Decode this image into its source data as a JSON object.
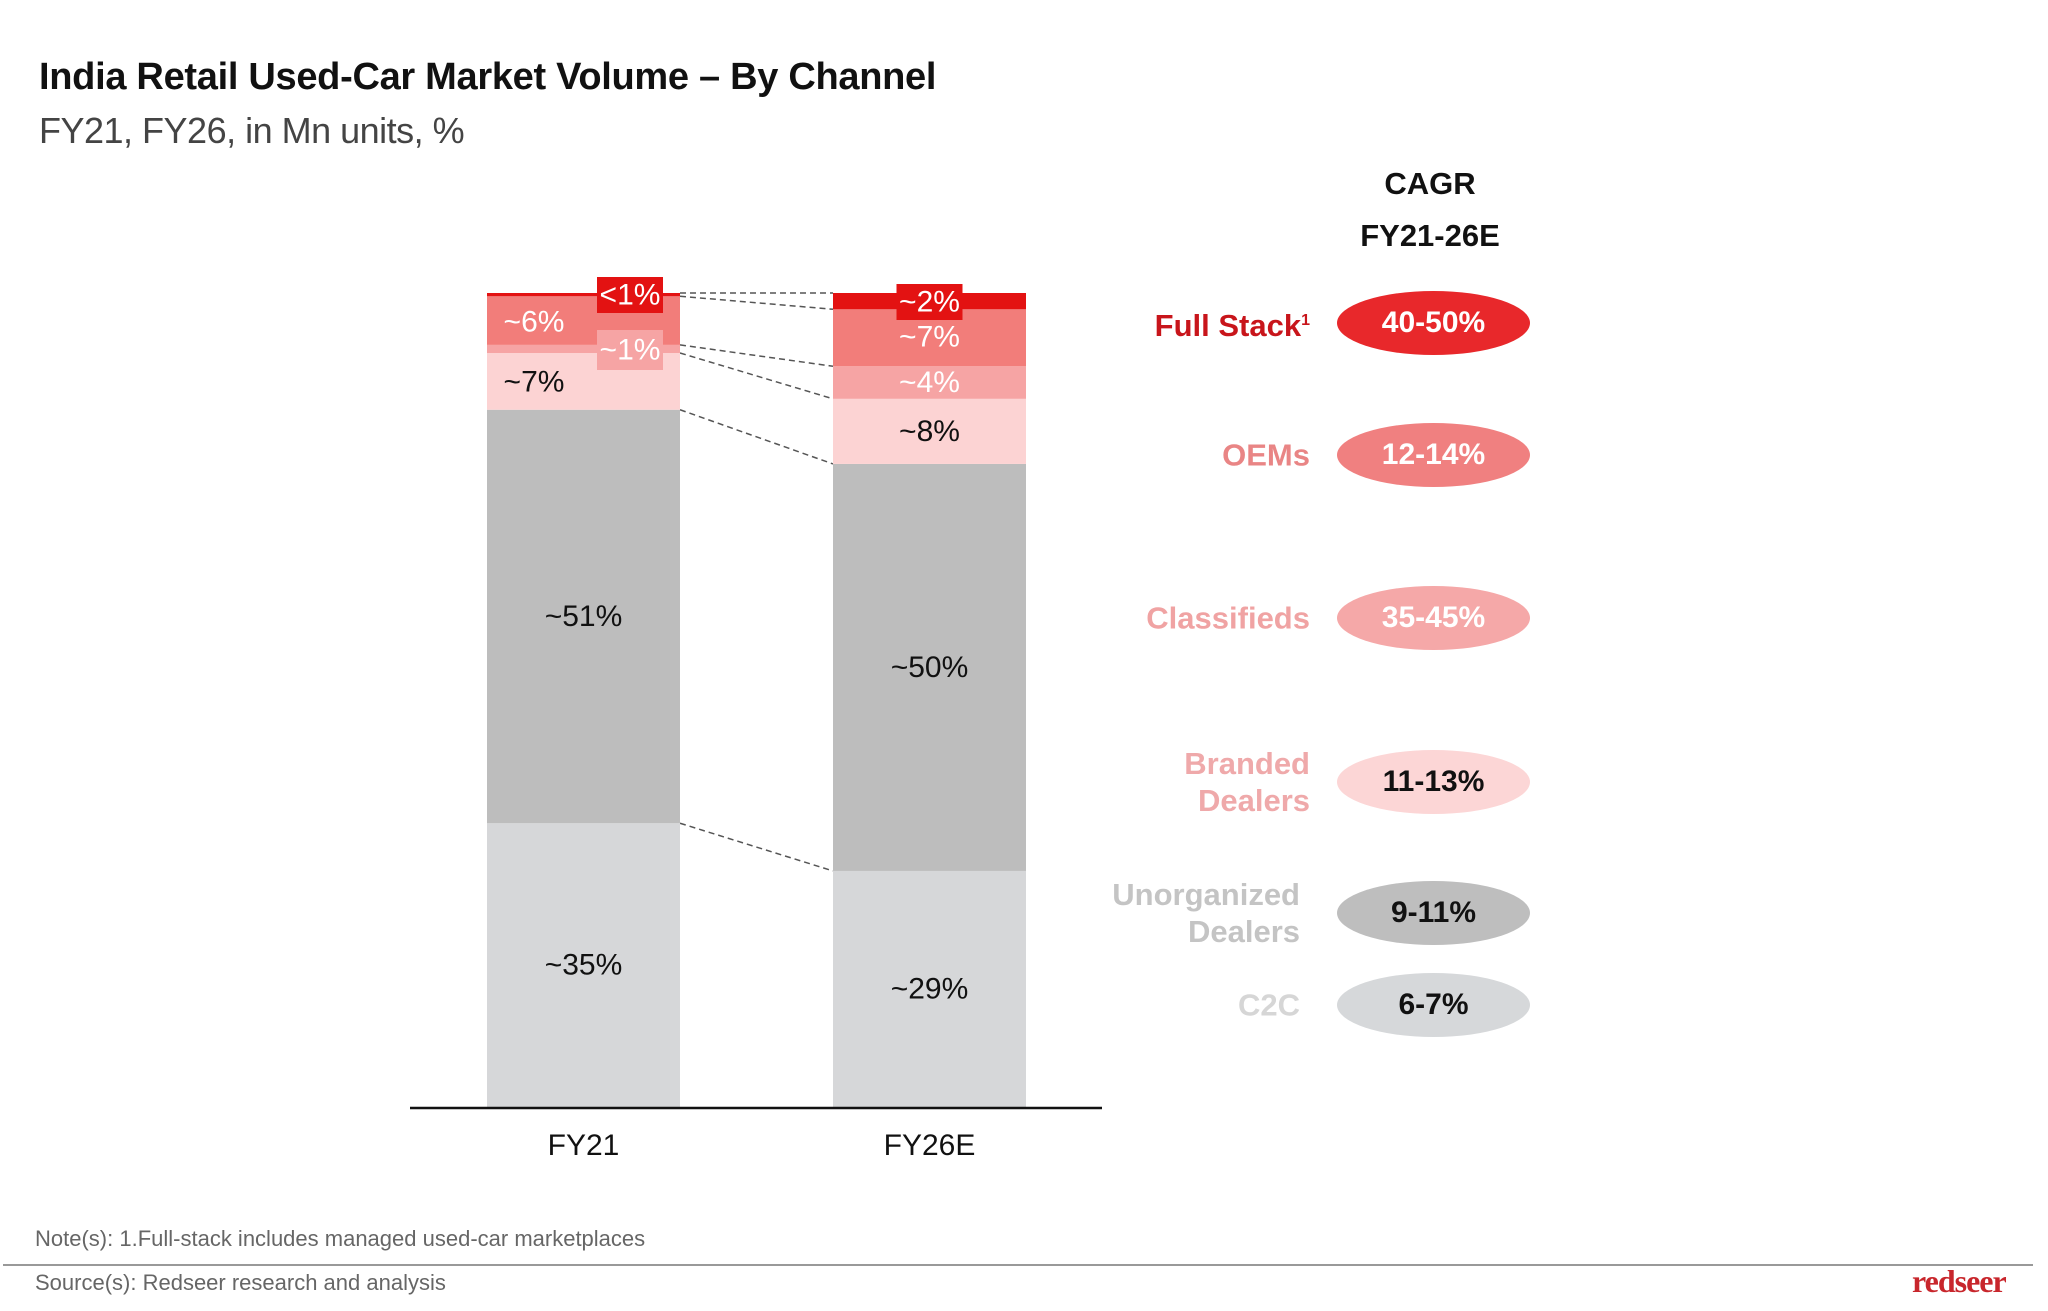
{
  "header": {
    "title": "India Retail Used-Car Market Volume – By Channel",
    "subtitle": "FY21, FY26, in Mn units, %"
  },
  "chart_data": {
    "type": "bar",
    "stacked": true,
    "title": "India Retail Used-Car Market Volume – By Channel",
    "subtitle": "FY21, FY26, in Mn units, %",
    "categories": [
      "FY21",
      "FY26E"
    ],
    "series": [
      {
        "name": "C2C",
        "values": [
          35,
          29
        ],
        "labels": [
          "~35%",
          "~29%"
        ],
        "color": "#d6d7d9",
        "text_color": "#111111"
      },
      {
        "name": "Unorganized Dealers",
        "values": [
          51,
          50
        ],
        "labels": [
          "~51%",
          "~50%"
        ],
        "color": "#bdbdbd",
        "text_color": "#111111"
      },
      {
        "name": "Branded Dealers",
        "values": [
          7,
          8
        ],
        "labels": [
          "~7%",
          "~8%"
        ],
        "color": "#fcd3d3",
        "text_color": "#111111"
      },
      {
        "name": "Classifieds",
        "values": [
          1,
          4
        ],
        "labels": [
          "~1%",
          "~4%"
        ],
        "color": "#f6a4a4",
        "text_color": "#ffffff"
      },
      {
        "name": "OEMs",
        "values": [
          6,
          7
        ],
        "labels": [
          "~6%",
          "~7%"
        ],
        "color": "#f27d7a",
        "text_color": "#ffffff"
      },
      {
        "name": "Full Stack",
        "values": [
          0.4,
          2
        ],
        "labels": [
          "<1%",
          "~2%"
        ],
        "color": "#e31212",
        "text_color": "#ffffff"
      }
    ],
    "xlabel": "",
    "ylabel": "",
    "ylim": [
      0,
      100
    ],
    "grid": false,
    "legend": "right",
    "connector_lines": "dashed"
  },
  "cagr": {
    "heading_line1": "CAGR",
    "heading_line2": "FY21-26E",
    "rows": [
      {
        "name": "Full Stack",
        "footnote": "1",
        "value": "40-50%",
        "name_color": "#c8151b",
        "pill_color": "#e8282b",
        "value_color": "#ffffff"
      },
      {
        "name": "OEMs",
        "footnote": "",
        "value": "12-14%",
        "name_color": "#e98585",
        "pill_color": "#f08080",
        "value_color": "#ffffff"
      },
      {
        "name": "Classifieds",
        "footnote": "",
        "value": "35-45%",
        "name_color": "#f0a3a3",
        "pill_color": "#f5a8a8",
        "value_color": "#ffffff"
      },
      {
        "name_line1": "Branded",
        "name_line2": "Dealers",
        "value": "11-13%",
        "name_color": "#efa9aa",
        "pill_color": "#fcd6d6",
        "value_color": "#111111"
      },
      {
        "name_line1": "Unorganized",
        "name_line2": "Dealers",
        "value": "9-11%",
        "name_color": "#c4c4c4",
        "pill_color": "#bebebe",
        "value_color": "#111111"
      },
      {
        "name": "C2C",
        "footnote": "",
        "value": "6-7%",
        "name_color": "#d6d6d6",
        "pill_color": "#d6d8da",
        "value_color": "#111111"
      }
    ]
  },
  "footer": {
    "note": "Note(s): 1.Full-stack includes managed used-car marketplaces",
    "source": "Source(s): Redseer research and analysis",
    "logo": "redseer"
  }
}
